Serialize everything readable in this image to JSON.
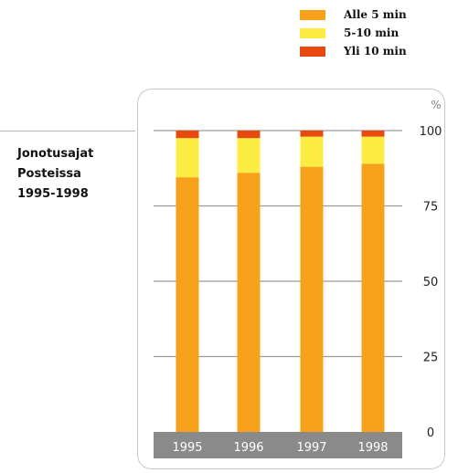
{
  "legend": [
    {
      "label": "Alle 5 min",
      "color": "#f7a11a"
    },
    {
      "label": "5-10 min",
      "color": "#fcec42"
    },
    {
      "label": "Yli 10 min",
      "color": "#e8490f"
    }
  ],
  "title_lines": [
    "Jonotusajat",
    "Posteissa",
    "1995-1998"
  ],
  "chart_data": {
    "type": "bar",
    "stacked": true,
    "categories": [
      "1995",
      "1996",
      "1997",
      "1998"
    ],
    "series": [
      {
        "name": "Alle 5 min",
        "color": "#f7a11a",
        "values": [
          84.5,
          86,
          88,
          89
        ]
      },
      {
        "name": "5-10 min",
        "color": "#fcec42",
        "values": [
          13,
          11.5,
          10,
          9
        ]
      },
      {
        "name": "Yli 10 min",
        "color": "#e8490f",
        "values": [
          2.5,
          2.5,
          2,
          2
        ]
      }
    ],
    "y_unit": "%",
    "yticks": [
      0,
      25,
      50,
      75,
      100
    ],
    "ylim": [
      0,
      100
    ],
    "grid": true
  }
}
